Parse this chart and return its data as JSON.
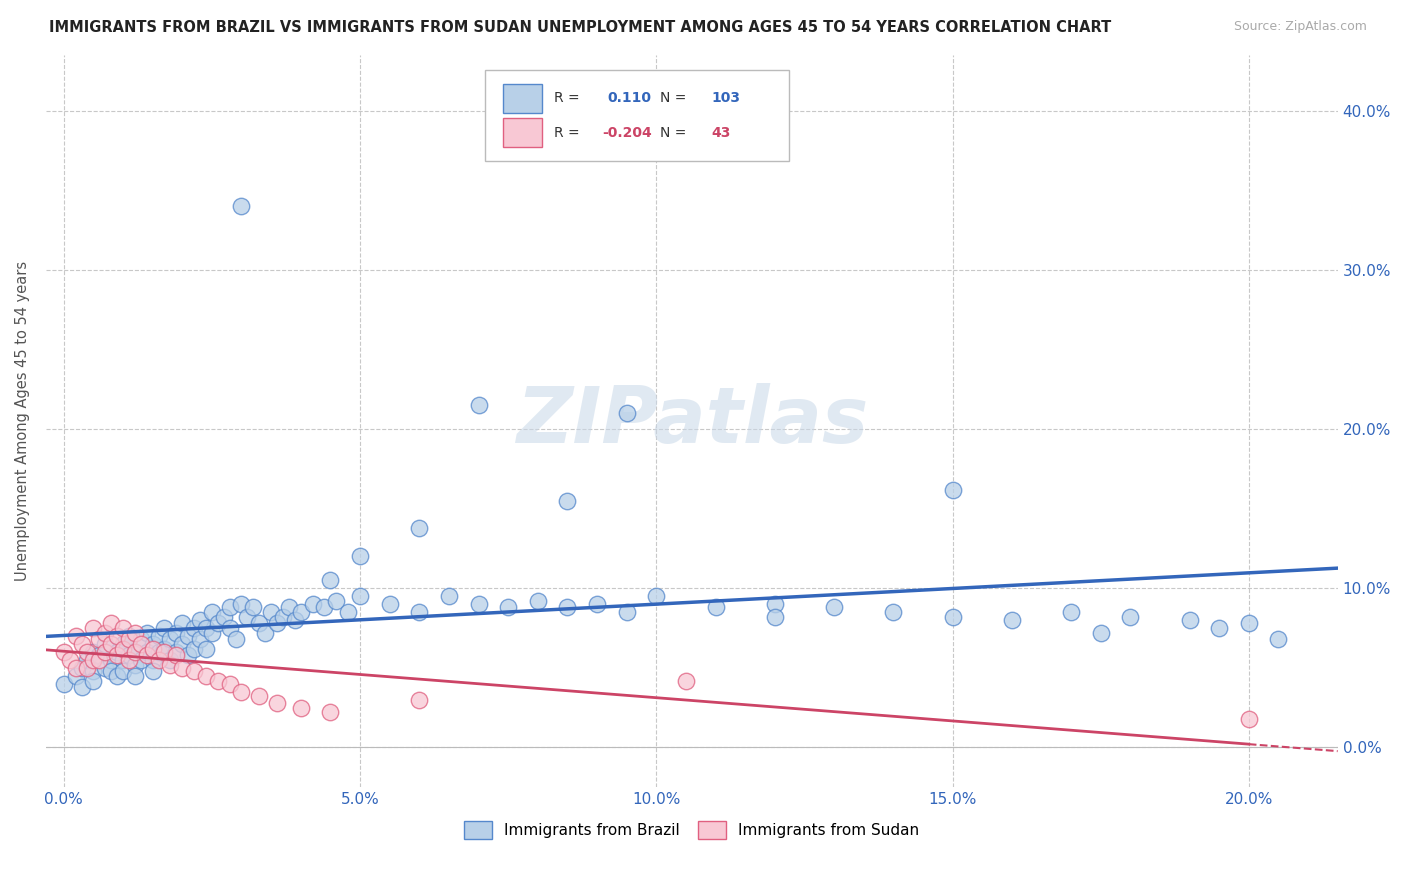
{
  "title": "IMMIGRANTS FROM BRAZIL VS IMMIGRANTS FROM SUDAN UNEMPLOYMENT AMONG AGES 45 TO 54 YEARS CORRELATION CHART",
  "source": "Source: ZipAtlas.com",
  "xlabel_tick_vals": [
    0.0,
    0.05,
    0.1,
    0.15,
    0.2
  ],
  "ylabel_tick_vals": [
    0.0,
    0.1,
    0.2,
    0.3,
    0.4
  ],
  "ylabel_label": "Unemployment Among Ages 45 to 54 years",
  "xlim": [
    -0.003,
    0.215
  ],
  "ylim": [
    -0.025,
    0.435
  ],
  "brazil_R": 0.11,
  "brazil_N": 103,
  "sudan_R": -0.204,
  "sudan_N": 43,
  "brazil_color": "#b8d0e8",
  "brazil_edge_color": "#5588cc",
  "brazil_line_color": "#3366bb",
  "sudan_color": "#f8c8d4",
  "sudan_edge_color": "#e06080",
  "sudan_line_color": "#cc4466",
  "watermark": "ZIPatlas",
  "background_color": "#ffffff",
  "grid_color": "#c8c8c8",
  "brazil_scatter_x": [
    0.0,
    0.002,
    0.003,
    0.003,
    0.004,
    0.005,
    0.005,
    0.005,
    0.006,
    0.007,
    0.007,
    0.008,
    0.008,
    0.009,
    0.009,
    0.01,
    0.01,
    0.01,
    0.011,
    0.011,
    0.012,
    0.012,
    0.012,
    0.013,
    0.013,
    0.014,
    0.014,
    0.015,
    0.015,
    0.015,
    0.016,
    0.016,
    0.017,
    0.017,
    0.018,
    0.018,
    0.019,
    0.019,
    0.02,
    0.02,
    0.021,
    0.021,
    0.022,
    0.022,
    0.023,
    0.023,
    0.024,
    0.024,
    0.025,
    0.025,
    0.026,
    0.027,
    0.028,
    0.028,
    0.029,
    0.03,
    0.031,
    0.032,
    0.033,
    0.034,
    0.035,
    0.036,
    0.037,
    0.038,
    0.039,
    0.04,
    0.042,
    0.044,
    0.046,
    0.048,
    0.05,
    0.055,
    0.06,
    0.065,
    0.07,
    0.075,
    0.08,
    0.085,
    0.09,
    0.095,
    0.1,
    0.11,
    0.12,
    0.13,
    0.14,
    0.15,
    0.16,
    0.17,
    0.18,
    0.19,
    0.2,
    0.03,
    0.045,
    0.06,
    0.05,
    0.12,
    0.15,
    0.175,
    0.195,
    0.205,
    0.095,
    0.07,
    0.085
  ],
  "brazil_scatter_y": [
    0.04,
    0.045,
    0.05,
    0.038,
    0.055,
    0.06,
    0.048,
    0.042,
    0.058,
    0.05,
    0.065,
    0.055,
    0.048,
    0.06,
    0.045,
    0.065,
    0.055,
    0.048,
    0.07,
    0.058,
    0.06,
    0.052,
    0.045,
    0.068,
    0.055,
    0.072,
    0.06,
    0.065,
    0.055,
    0.048,
    0.07,
    0.06,
    0.075,
    0.062,
    0.068,
    0.055,
    0.072,
    0.06,
    0.078,
    0.065,
    0.07,
    0.058,
    0.075,
    0.062,
    0.08,
    0.068,
    0.075,
    0.062,
    0.085,
    0.072,
    0.078,
    0.082,
    0.088,
    0.075,
    0.068,
    0.09,
    0.082,
    0.088,
    0.078,
    0.072,
    0.085,
    0.078,
    0.082,
    0.088,
    0.08,
    0.085,
    0.09,
    0.088,
    0.092,
    0.085,
    0.095,
    0.09,
    0.085,
    0.095,
    0.09,
    0.088,
    0.092,
    0.088,
    0.09,
    0.085,
    0.095,
    0.088,
    0.09,
    0.088,
    0.085,
    0.082,
    0.08,
    0.085,
    0.082,
    0.08,
    0.078,
    0.34,
    0.105,
    0.138,
    0.12,
    0.082,
    0.162,
    0.072,
    0.075,
    0.068,
    0.21,
    0.215,
    0.155
  ],
  "sudan_scatter_x": [
    0.0,
    0.001,
    0.002,
    0.002,
    0.003,
    0.004,
    0.004,
    0.005,
    0.005,
    0.006,
    0.006,
    0.007,
    0.007,
    0.008,
    0.008,
    0.009,
    0.009,
    0.01,
    0.01,
    0.011,
    0.011,
    0.012,
    0.012,
    0.013,
    0.014,
    0.015,
    0.016,
    0.017,
    0.018,
    0.019,
    0.02,
    0.022,
    0.024,
    0.026,
    0.028,
    0.03,
    0.033,
    0.036,
    0.04,
    0.045,
    0.06,
    0.105,
    0.2
  ],
  "sudan_scatter_y": [
    0.06,
    0.055,
    0.07,
    0.05,
    0.065,
    0.06,
    0.05,
    0.075,
    0.055,
    0.068,
    0.055,
    0.072,
    0.06,
    0.078,
    0.065,
    0.07,
    0.058,
    0.075,
    0.062,
    0.068,
    0.055,
    0.072,
    0.06,
    0.065,
    0.058,
    0.062,
    0.055,
    0.06,
    0.052,
    0.058,
    0.05,
    0.048,
    0.045,
    0.042,
    0.04,
    0.035,
    0.032,
    0.028,
    0.025,
    0.022,
    0.03,
    0.042,
    0.018
  ]
}
